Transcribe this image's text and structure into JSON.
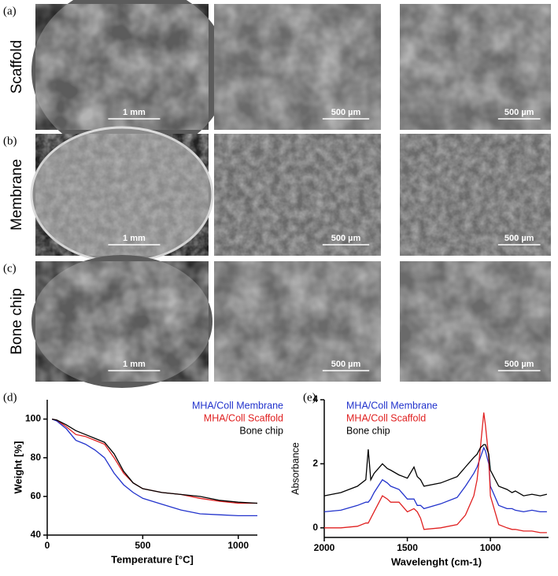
{
  "image_panels": {
    "labels": [
      "(a)",
      "(b)",
      "(c)"
    ],
    "rows": [
      "Scaffold",
      "Membrane",
      "Bone chip"
    ],
    "scale_bars": [
      [
        "1 mm",
        "500 µm",
        "500 µm"
      ],
      [
        "1 mm",
        "500 µm",
        "500 µm"
      ],
      [
        "1 mm",
        "500 µm",
        "500 µm"
      ]
    ]
  },
  "chart_data": [
    {
      "type": "line",
      "label": "(d)",
      "xlabel": "Temperature [°C]",
      "ylabel": "Weight [%]",
      "xlim": [
        0,
        1100
      ],
      "xticks": [
        0,
        500,
        1000
      ],
      "ylim": [
        40,
        110
      ],
      "yticks": [
        40,
        60,
        80,
        100
      ],
      "legend": "upper right",
      "x": [
        25,
        50,
        100,
        150,
        200,
        250,
        300,
        350,
        400,
        450,
        500,
        600,
        700,
        800,
        900,
        1000,
        1100
      ],
      "series": [
        {
          "name": "MHA/Coll Membrane",
          "color": "#2233cc",
          "values": [
            100,
            99,
            95,
            89,
            87,
            84,
            80,
            72,
            66,
            62,
            59,
            56,
            53,
            51,
            50.5,
            50,
            50
          ]
        },
        {
          "name": "MHA/Coll Scaffold",
          "color": "#e02020",
          "values": [
            100,
            99.5,
            96,
            92,
            91,
            89,
            87,
            80,
            72,
            67,
            64,
            62,
            61,
            59,
            57.5,
            56.5,
            56.5
          ]
        },
        {
          "name": "Bone chip",
          "color": "#000000",
          "values": [
            100,
            99.5,
            97,
            94,
            92,
            90,
            88,
            82,
            73,
            67,
            64,
            62,
            61,
            60,
            58,
            57,
            56.5
          ]
        }
      ]
    },
    {
      "type": "line",
      "label": "(e)",
      "xlabel": "Wavelenght (cm-1)",
      "ylabel": "Absorbance",
      "xlim": [
        2000,
        650
      ],
      "xticks": [
        2000,
        1500,
        1000
      ],
      "ylim": [
        -0.3,
        4
      ],
      "yticks": [
        0,
        2,
        4
      ],
      "legend": "upper left",
      "x": [
        2000,
        1900,
        1800,
        1750,
        1735,
        1720,
        1700,
        1650,
        1620,
        1600,
        1550,
        1500,
        1460,
        1440,
        1420,
        1400,
        1300,
        1200,
        1150,
        1100,
        1080,
        1060,
        1040,
        1030,
        1010,
        1000,
        950,
        900,
        870,
        850,
        800,
        750,
        700,
        660
      ],
      "series": [
        {
          "name": "MHA/Coll Membrane",
          "color": "#2233cc",
          "values": [
            0.5,
            0.55,
            0.7,
            0.8,
            0.8,
            0.9,
            1.1,
            1.5,
            1.4,
            1.3,
            1.2,
            0.9,
            0.9,
            0.7,
            0.7,
            0.6,
            0.75,
            0.95,
            1.3,
            1.7,
            1.9,
            2.2,
            2.5,
            2.4,
            2.0,
            1.3,
            0.7,
            0.6,
            0.6,
            0.55,
            0.5,
            0.55,
            0.5,
            0.5
          ]
        },
        {
          "name": "MHA/Coll Scaffold",
          "color": "#e02020",
          "values": [
            0,
            0,
            0.05,
            0.15,
            0.15,
            0.3,
            0.5,
            1.0,
            0.9,
            0.8,
            0.8,
            0.5,
            0.6,
            0.5,
            0.3,
            -0.05,
            0.0,
            0.1,
            0.4,
            1.0,
            1.5,
            2.5,
            3.6,
            3.2,
            2.2,
            1.0,
            0.1,
            0.0,
            -0.05,
            -0.05,
            -0.1,
            -0.1,
            -0.15,
            -0.15
          ]
        },
        {
          "name": "Bone chip",
          "color": "#000000",
          "values": [
            1.0,
            1.1,
            1.3,
            1.5,
            2.45,
            1.5,
            1.7,
            2.0,
            1.85,
            1.8,
            1.65,
            1.55,
            1.9,
            1.6,
            1.5,
            1.3,
            1.4,
            1.6,
            1.9,
            2.2,
            2.3,
            2.5,
            2.6,
            2.6,
            2.3,
            1.8,
            1.3,
            1.2,
            1.1,
            1.15,
            1.0,
            1.05,
            1.0,
            1.05
          ]
        }
      ]
    }
  ]
}
